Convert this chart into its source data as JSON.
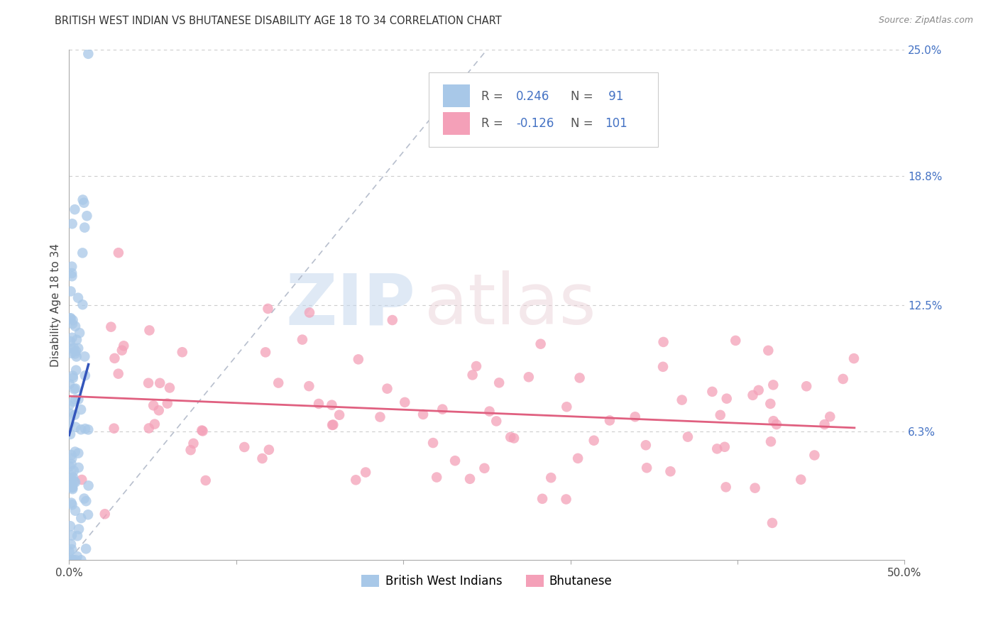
{
  "title": "BRITISH WEST INDIAN VS BHUTANESE DISABILITY AGE 18 TO 34 CORRELATION CHART",
  "source": "Source: ZipAtlas.com",
  "ylabel": "Disability Age 18 to 34",
  "xlim": [
    0.0,
    0.5
  ],
  "ylim": [
    0.0,
    0.25
  ],
  "ytick_right_labels": [
    "25.0%",
    "18.8%",
    "12.5%",
    "6.3%"
  ],
  "ytick_right_values": [
    0.25,
    0.188,
    0.125,
    0.063
  ],
  "blue_R": 0.246,
  "blue_N": 91,
  "pink_R": -0.126,
  "pink_N": 101,
  "blue_color": "#a8c8e8",
  "blue_line_color": "#3355bb",
  "pink_color": "#f4a0b8",
  "pink_line_color": "#e06080",
  "diagonal_color": "#b0b8c8",
  "legend_label_blue": "British West Indians",
  "legend_label_pink": "Bhutanese"
}
